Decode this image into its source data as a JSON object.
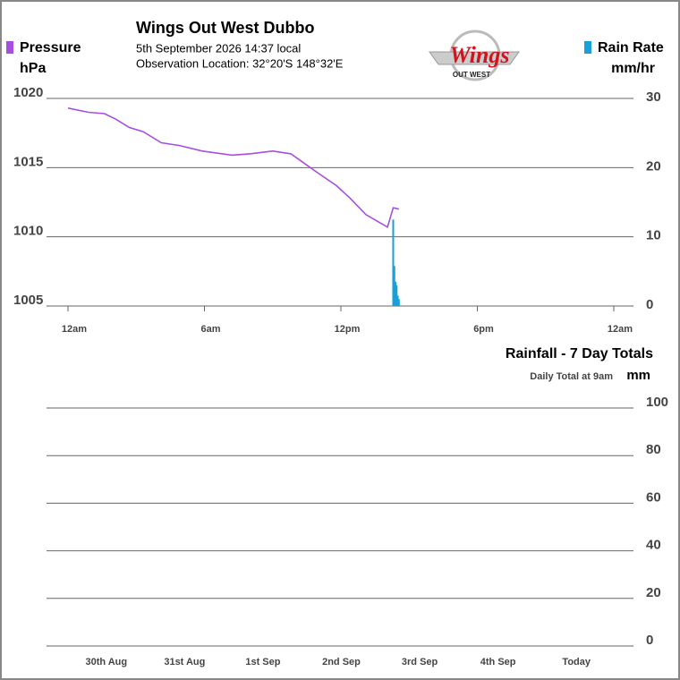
{
  "header": {
    "title": "Wings Out West Dubbo",
    "date_line": "5th September 2026  14:37 local",
    "location_line": "Observation Location: 32°20'S 148°32'E",
    "logo_title": "Wings",
    "logo_subtitle": "OUT WEST"
  },
  "chart_data": [
    {
      "type": "line",
      "xlim": [
        0,
        24
      ],
      "xticks": [
        {
          "value": 0,
          "label": "12am"
        },
        {
          "value": 6,
          "label": "6am"
        },
        {
          "value": 12,
          "label": "12pm"
        },
        {
          "value": 18,
          "label": "6pm"
        },
        {
          "value": 24,
          "label": "12am"
        }
      ],
      "ylim": [
        1005,
        1020
      ],
      "yticks": [
        1005,
        1010,
        1015,
        1020
      ],
      "ylabel": "hPa",
      "y2lim": [
        0,
        30
      ],
      "y2ticks": [
        0,
        10,
        20,
        30
      ],
      "y2label": "mm/hr",
      "grid": true,
      "series": [
        {
          "name": "Pressure",
          "color": "#a64ee0",
          "x": [
            0,
            0.9,
            1.6,
            2.1,
            2.7,
            3.3,
            4.1,
            4.9,
            5.9,
            7.2,
            8.0,
            9.0,
            9.8,
            10.4,
            11.0,
            11.8,
            12.4,
            13.1,
            14.05,
            14.3,
            14.55
          ],
          "values": [
            1019.3,
            1019.0,
            1018.9,
            1018.5,
            1017.9,
            1017.6,
            1016.8,
            1016.6,
            1016.2,
            1015.9,
            1016.0,
            1016.2,
            1016.0,
            1015.3,
            1014.6,
            1013.7,
            1012.8,
            1011.6,
            1010.7,
            1012.1,
            1012.0
          ]
        },
        {
          "name": "Rain Rate",
          "color": "#1aa0d8",
          "axis": "y2",
          "x": [
            14.3,
            14.35,
            14.4,
            14.45,
            14.5,
            14.55
          ],
          "values": [
            12.5,
            5.8,
            3.5,
            3.0,
            1.5,
            1.0
          ]
        }
      ]
    },
    {
      "type": "bar",
      "title": "Rainfall - 7 Day Totals",
      "subtitle": "Daily Total at 9am",
      "ylabel": "mm",
      "categories": [
        "30th Aug",
        "31st Aug",
        "1st Sep",
        "2nd Sep",
        "3rd Sep",
        "4th Sep",
        "Today"
      ],
      "values": [
        0,
        0,
        0,
        0,
        0,
        0,
        0
      ],
      "color": "#1aa0d8",
      "ylim": [
        0,
        100
      ],
      "yticks": [
        0,
        20,
        40,
        60,
        80,
        100
      ],
      "grid": true
    }
  ]
}
